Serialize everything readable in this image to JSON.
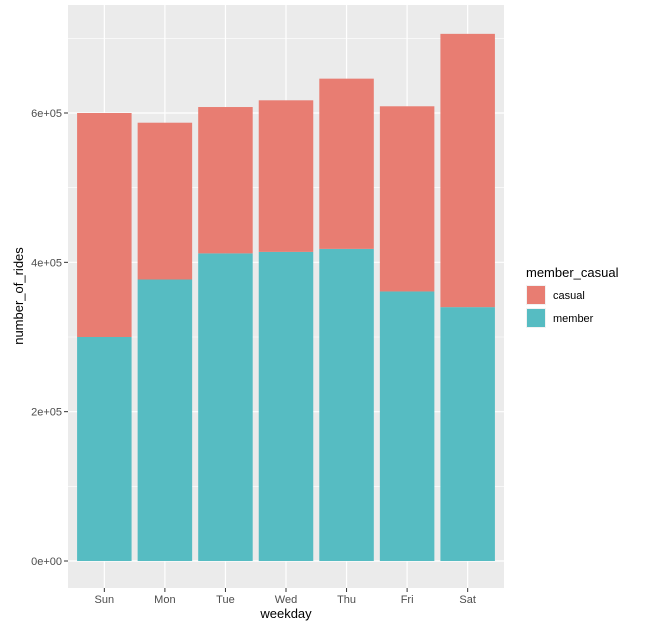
{
  "chart_data": {
    "type": "bar",
    "stacked": true,
    "categories": [
      "Sun",
      "Mon",
      "Tue",
      "Wed",
      "Thu",
      "Fri",
      "Sat"
    ],
    "series": [
      {
        "name": "member",
        "color": "#56bcc2",
        "values": [
          300000,
          377000,
          412000,
          414000,
          418000,
          361000,
          340000
        ]
      },
      {
        "name": "casual",
        "color": "#e87d72",
        "values": [
          300000,
          210000,
          196000,
          203000,
          228000,
          248000,
          366000
        ]
      }
    ],
    "xlabel": "weekday",
    "ylabel": "number_of_rides",
    "ylim": [
      0,
      735000
    ],
    "yticks": [
      0,
      200000,
      400000,
      600000
    ],
    "ytick_labels": [
      "0e+00",
      "2e+05",
      "4e+05",
      "6e+05"
    ],
    "grid": true,
    "legend": {
      "title": "member_casual",
      "placement": "right",
      "entries": [
        {
          "label": "casual",
          "color": "#e87d72"
        },
        {
          "label": "member",
          "color": "#56bcc2"
        }
      ]
    }
  }
}
